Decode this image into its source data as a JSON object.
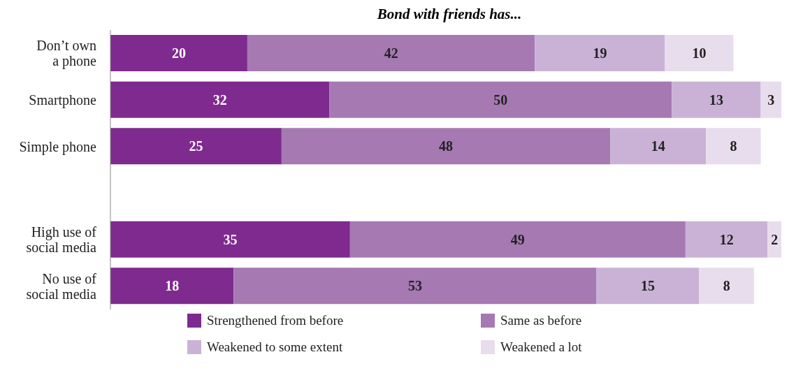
{
  "chart_data": {
    "type": "bar",
    "orientation": "horizontal",
    "stacked": true,
    "title": "Bond with friends has...",
    "categories": [
      "Don’t own\na phone",
      "Smartphone",
      "Simple phone",
      null,
      "High use of\nsocial media",
      "No use of\nsocial media"
    ],
    "series": [
      {
        "name": "Strengthened from before",
        "color": "#7f2a8f",
        "values": [
          20,
          32,
          25,
          null,
          35,
          18
        ]
      },
      {
        "name": "Same as before",
        "color": "#a679b3",
        "values": [
          42,
          50,
          48,
          null,
          49,
          53
        ]
      },
      {
        "name": "Weakened to some extent",
        "color": "#cab2d6",
        "values": [
          19,
          13,
          14,
          null,
          12,
          15
        ]
      },
      {
        "name": "Weakened a lot",
        "color": "#e8ddec",
        "values": [
          10,
          3,
          8,
          null,
          2,
          8
        ]
      }
    ],
    "data_labels": true,
    "legend": "bottom"
  }
}
